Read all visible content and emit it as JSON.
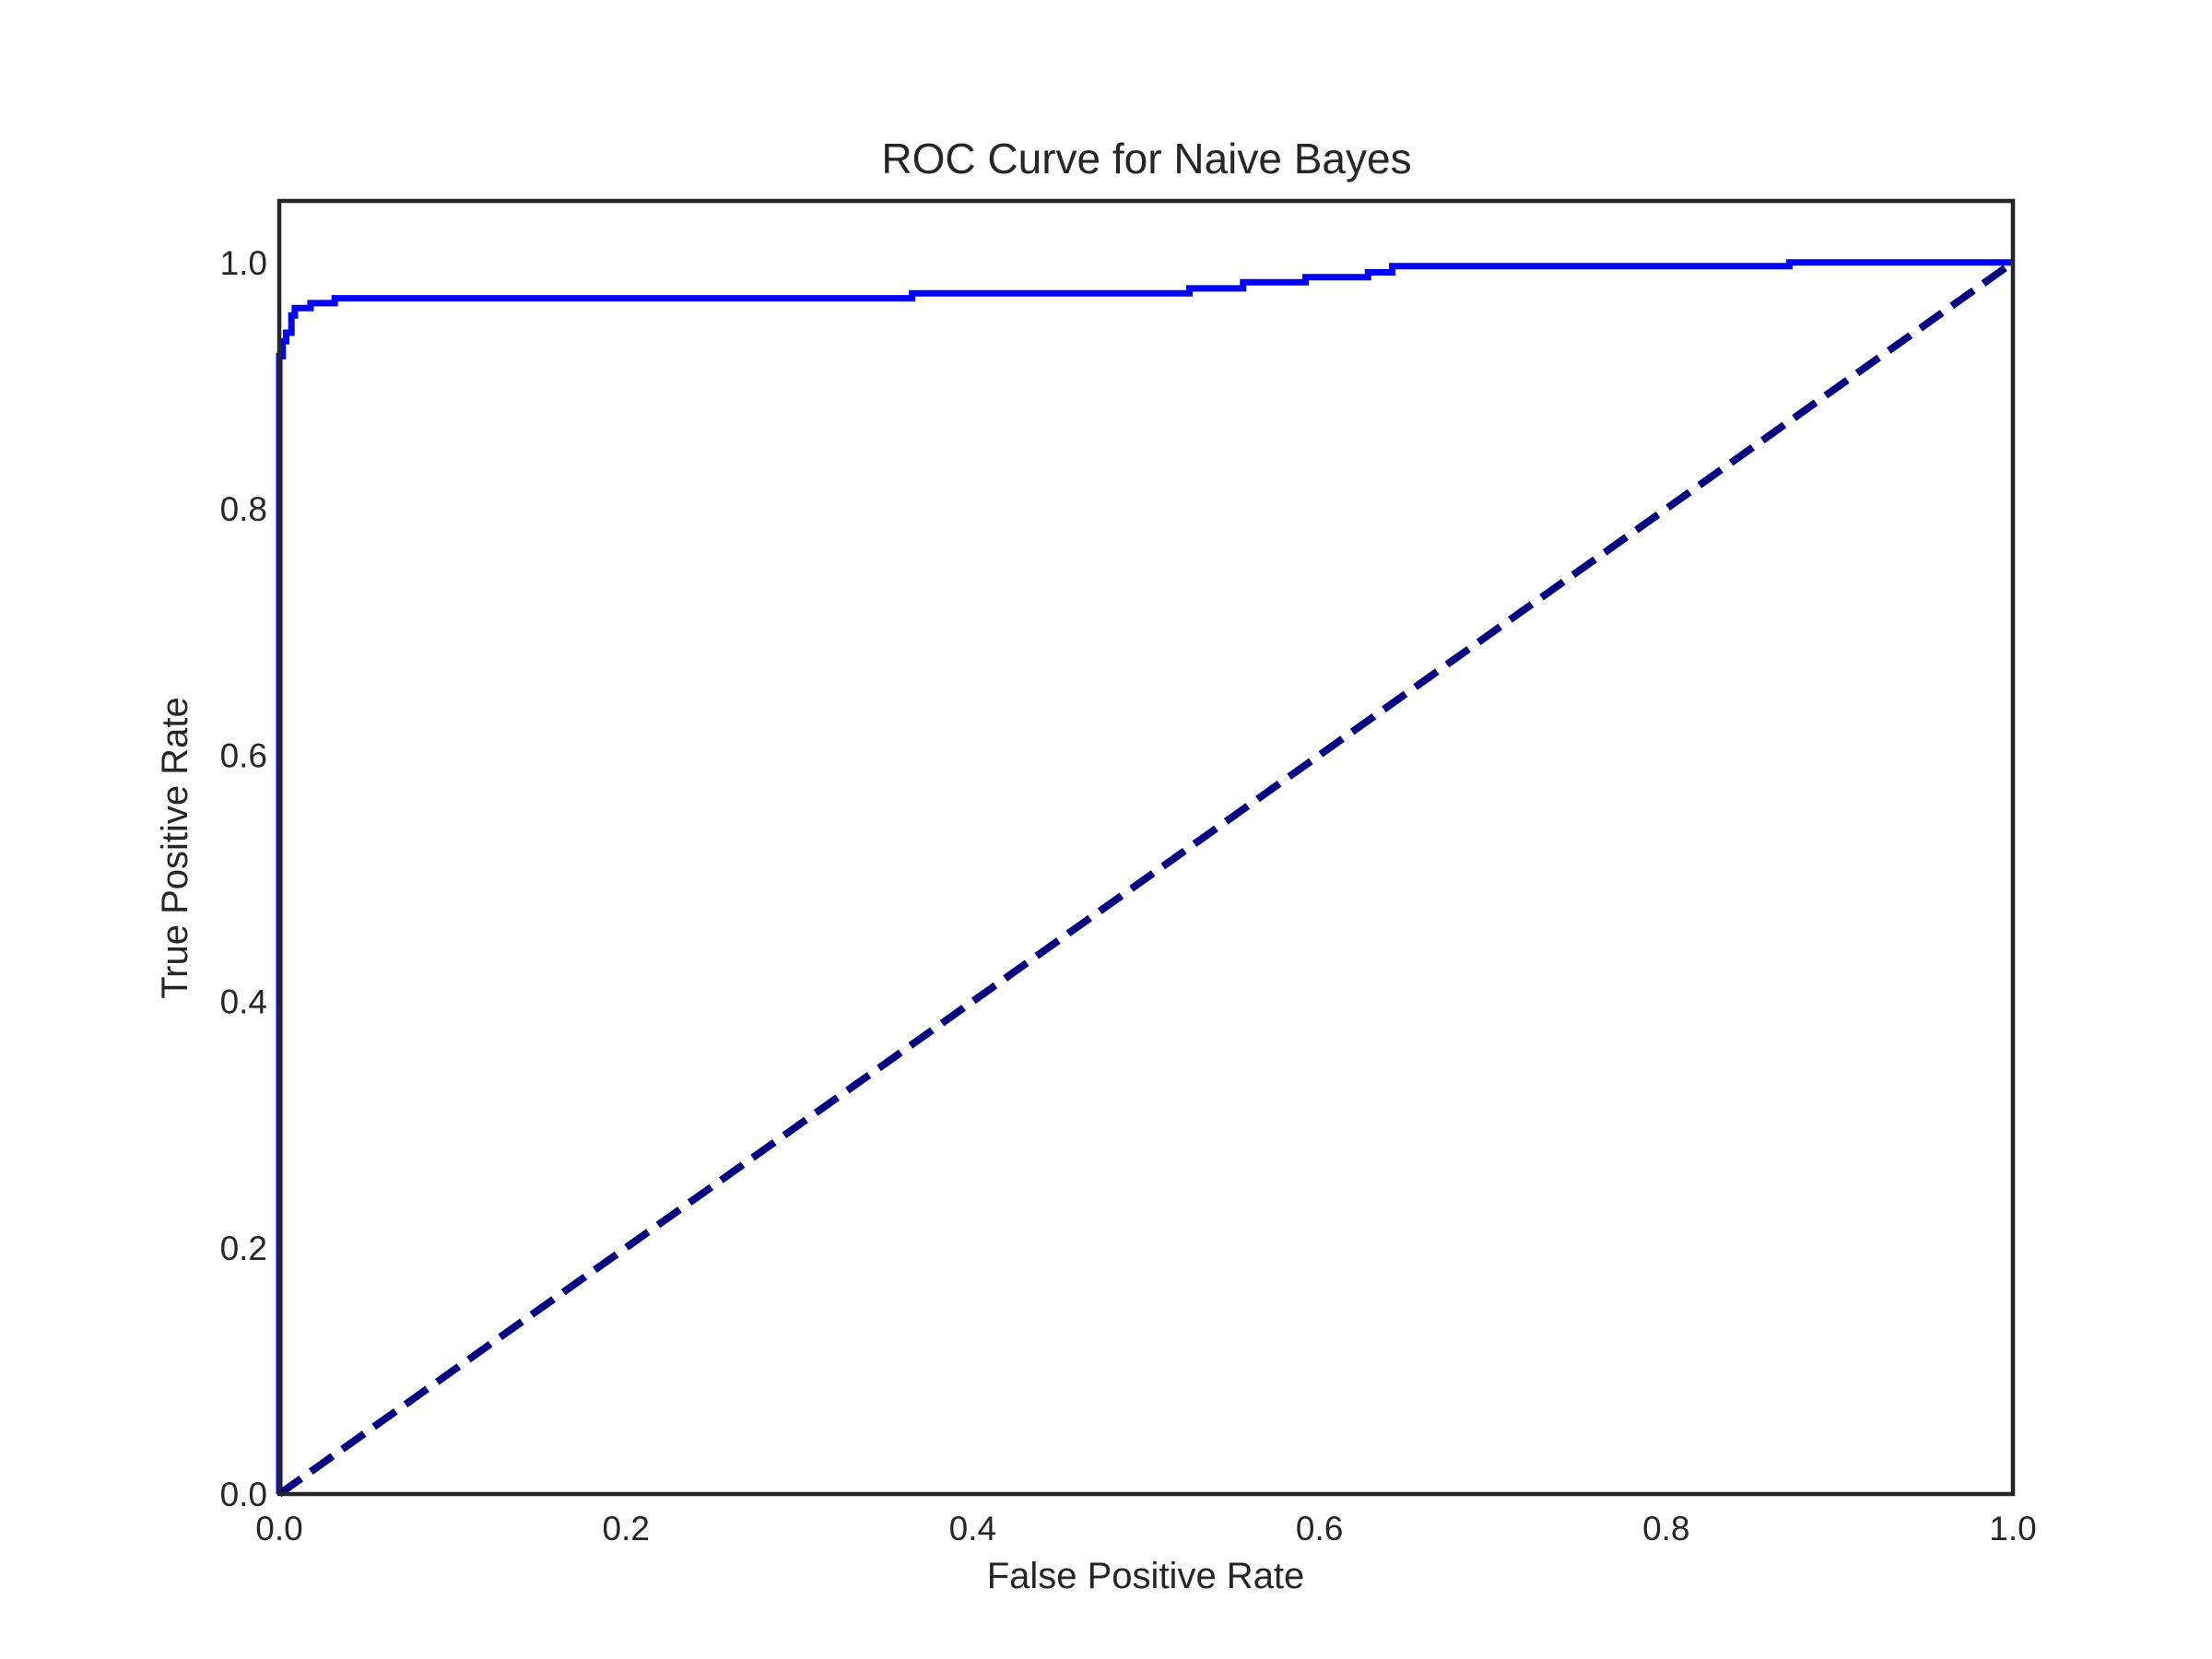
{
  "chart_data": {
    "type": "line",
    "title": "ROC Curve for Naive Bayes",
    "xlabel": "False Positive Rate",
    "ylabel": "True Positive Rate",
    "xlim": [
      0.0,
      1.0
    ],
    "ylim": [
      0.0,
      1.05
    ],
    "xticks": [
      "0.0",
      "0.2",
      "0.4",
      "0.6",
      "0.8",
      "1.0"
    ],
    "yticks": [
      "0.0",
      "0.2",
      "0.4",
      "0.6",
      "0.8",
      "1.0"
    ],
    "grid": false,
    "legend": "none",
    "series": [
      {
        "color": "#0000ff",
        "style": "solid",
        "x": [
          0.0,
          0.0,
          0.002,
          0.002,
          0.004,
          0.004,
          0.007,
          0.007,
          0.009,
          0.009,
          0.018,
          0.018,
          0.032,
          0.032,
          0.365,
          0.365,
          0.525,
          0.525,
          0.556,
          0.556,
          0.592,
          0.592,
          0.628,
          0.628,
          0.642,
          0.642,
          0.871,
          0.871,
          1.0
        ],
        "y": [
          0.0,
          0.924,
          0.924,
          0.936,
          0.936,
          0.943,
          0.943,
          0.957,
          0.957,
          0.963,
          0.963,
          0.967,
          0.967,
          0.971,
          0.971,
          0.975,
          0.975,
          0.979,
          0.979,
          0.984,
          0.984,
          0.988,
          0.988,
          0.992,
          0.992,
          0.997,
          0.997,
          1.0,
          1.0
        ]
      },
      {
        "color": "#000080",
        "style": "dashed",
        "x": [
          0.0,
          1.0
        ],
        "y": [
          0.0,
          1.0
        ]
      }
    ]
  }
}
